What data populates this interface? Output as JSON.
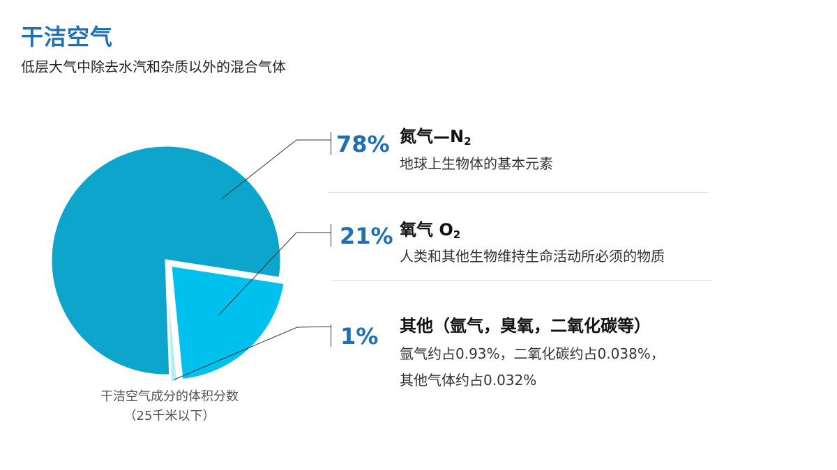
{
  "header": {
    "title": "干洁空气",
    "subtitle": "低层大气中除去水汽和杂质以外的混合气体"
  },
  "chart_data": {
    "type": "pie",
    "title": "",
    "caption_line1": "干洁空气成分的体积分数",
    "caption_line2": "（25千米以下）",
    "slices": [
      {
        "label": "78%",
        "value": 78,
        "color": "#0ea5cc"
      },
      {
        "label": "21%",
        "value": 21,
        "color": "#00c0ee"
      },
      {
        "label": "1%",
        "value": 1,
        "color": "#b8ecf7"
      }
    ]
  },
  "legend": {
    "items": [
      {
        "pct": "78%",
        "name": "氮气—N",
        "sub": "2",
        "desc": [
          "地球上生物体的基本元素"
        ]
      },
      {
        "pct": "21%",
        "name": "氧气  O",
        "sub": "2",
        "desc": [
          "人类和其他生物维持生命活动所必须的物质"
        ]
      },
      {
        "pct": "1%",
        "name": "其他（氩气，臭氧，二氧化碳等）",
        "sub": "",
        "desc": [
          "氩气约占0.93%，二氧化碳约占0.038%，",
          "其他气体约占0.032%"
        ]
      }
    ]
  }
}
